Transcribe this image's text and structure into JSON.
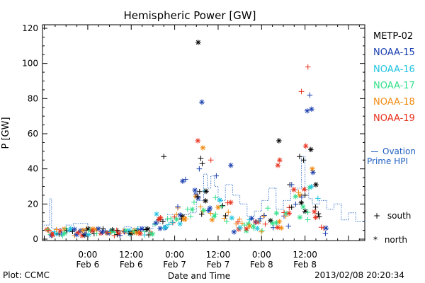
{
  "chart_data": {
    "type": "scatter",
    "title": "Hemispheric Power [GW]",
    "ylabel": "P [GW]",
    "xlabel": "Date and Time",
    "ylim": [
      0,
      123
    ],
    "xlim_hours": [
      -12.5,
      76.5
    ],
    "y_ticks": [
      0,
      20,
      40,
      60,
      80,
      100,
      120
    ],
    "x_ticks": [
      {
        "h": 0,
        "time": "0:00",
        "date": "Feb 6"
      },
      {
        "h": 12,
        "time": "12:00",
        "date": "Feb 6"
      },
      {
        "h": 24,
        "time": "0:00",
        "date": "Feb 7"
      },
      {
        "h": 36,
        "time": "12:00",
        "date": "Feb 7"
      },
      {
        "h": 48,
        "time": "0:00",
        "date": "Feb 8"
      },
      {
        "h": 60,
        "time": "12:00",
        "date": "Feb 8"
      }
    ],
    "series": [
      {
        "name": "METP-02",
        "color": "#000000"
      },
      {
        "name": "NOAA-15",
        "color": "#1a3fb0"
      },
      {
        "name": "NOAA-16",
        "color": "#22c4e0"
      },
      {
        "name": "NOAA-17",
        "color": "#33e08a"
      },
      {
        "name": "NOAA-18",
        "color": "#f28a10"
      },
      {
        "name": "NOAA-19",
        "color": "#e8301c"
      }
    ],
    "ovation_label": "Ovation Prime HPI",
    "ovation_color": "#1f5fbf",
    "ovation_step": [
      [
        -12.5,
        8
      ],
      [
        -10.5,
        23
      ],
      [
        -10,
        6
      ],
      [
        -6,
        8
      ],
      [
        -4,
        9
      ],
      [
        0,
        5
      ],
      [
        2,
        6
      ],
      [
        4,
        4
      ],
      [
        8,
        5
      ],
      [
        10,
        7
      ],
      [
        12,
        6
      ],
      [
        14,
        7
      ],
      [
        16,
        6
      ],
      [
        18,
        9
      ],
      [
        20,
        11
      ],
      [
        22,
        14
      ],
      [
        24,
        12
      ],
      [
        26,
        14
      ],
      [
        28,
        15
      ],
      [
        30,
        22
      ],
      [
        32,
        37
      ],
      [
        33,
        29
      ],
      [
        34,
        36
      ],
      [
        35,
        30
      ],
      [
        36,
        22
      ],
      [
        38,
        31
      ],
      [
        40,
        25
      ],
      [
        42,
        20
      ],
      [
        44,
        13
      ],
      [
        46,
        16
      ],
      [
        48,
        22
      ],
      [
        50,
        29
      ],
      [
        52,
        17
      ],
      [
        54,
        22
      ],
      [
        56,
        28
      ],
      [
        58,
        29
      ],
      [
        59,
        47
      ],
      [
        60,
        28
      ],
      [
        61,
        23
      ],
      [
        62,
        20
      ],
      [
        64,
        22
      ],
      [
        66,
        17
      ],
      [
        68,
        20
      ],
      [
        70,
        11
      ],
      [
        72,
        15
      ],
      [
        74,
        10
      ],
      [
        76.5,
        10
      ]
    ],
    "highlights": [
      {
        "h": 30.5,
        "p": 112,
        "series": "METP-02",
        "sym": "north"
      },
      {
        "h": 31.5,
        "p": 78,
        "series": "NOAA-15",
        "sym": "north"
      },
      {
        "h": 30.4,
        "p": 56,
        "series": "NOAA-19",
        "sym": "north"
      },
      {
        "h": 31.8,
        "p": 52,
        "series": "NOAA-18",
        "sym": "north"
      },
      {
        "h": 31.2,
        "p": 46,
        "series": "METP-02",
        "sym": "south"
      },
      {
        "h": 31.6,
        "p": 43,
        "series": "METP-02",
        "sym": "south"
      },
      {
        "h": 30.8,
        "p": 40,
        "series": "NOAA-15",
        "sym": "south"
      },
      {
        "h": 34.0,
        "p": 45,
        "series": "NOAA-19",
        "sym": "south"
      },
      {
        "h": 35.5,
        "p": 36,
        "series": "NOAA-15",
        "sym": "south"
      },
      {
        "h": 39.5,
        "p": 42,
        "series": "NOAA-15",
        "sym": "north"
      },
      {
        "h": 21.0,
        "p": 47,
        "series": "METP-02",
        "sym": "south"
      },
      {
        "h": 26.2,
        "p": 33,
        "series": "NOAA-15",
        "sym": "north"
      },
      {
        "h": 27.0,
        "p": 34,
        "series": "NOAA-15",
        "sym": "south"
      },
      {
        "h": 52.8,
        "p": 56,
        "series": "METP-02",
        "sym": "north"
      },
      {
        "h": 52.5,
        "p": 42,
        "series": "NOAA-19",
        "sym": "north"
      },
      {
        "h": 53.0,
        "p": 45,
        "series": "NOAA-19",
        "sym": "north"
      },
      {
        "h": 59.0,
        "p": 84,
        "series": "NOAA-19",
        "sym": "south"
      },
      {
        "h": 60.8,
        "p": 98,
        "series": "NOAA-19",
        "sym": "south"
      },
      {
        "h": 60.6,
        "p": 73,
        "series": "NOAA-15",
        "sym": "north"
      },
      {
        "h": 61.3,
        "p": 82,
        "series": "NOAA-15",
        "sym": "south"
      },
      {
        "h": 61.8,
        "p": 74,
        "series": "NOAA-15",
        "sym": "north"
      },
      {
        "h": 60.2,
        "p": 53,
        "series": "NOAA-19",
        "sym": "north"
      },
      {
        "h": 61.6,
        "p": 51,
        "series": "METP-02",
        "sym": "north"
      },
      {
        "h": 58.5,
        "p": 47,
        "series": "METP-02",
        "sym": "south"
      },
      {
        "h": 59.6,
        "p": 45,
        "series": "METP-02",
        "sym": "south"
      },
      {
        "h": 62.2,
        "p": 38,
        "series": "NOAA-15",
        "sym": "north"
      },
      {
        "h": 62.0,
        "p": 40,
        "series": "NOAA-18",
        "sym": "north"
      },
      {
        "h": 60.0,
        "p": 25,
        "series": "METP-02",
        "sym": "south"
      },
      {
        "h": 63.0,
        "p": 31,
        "series": "METP-02",
        "sym": "north"
      },
      {
        "h": 55.8,
        "p": 31,
        "series": "METP-02",
        "sym": "south"
      },
      {
        "h": 56.3,
        "p": 31,
        "series": "NOAA-15",
        "sym": "south"
      }
    ]
  },
  "legend_symbols": [
    {
      "sym": "+",
      "label": "south"
    },
    {
      "sym": "*",
      "label": "north"
    }
  ],
  "footer": {
    "plot_label": "Plot: CCMC",
    "timestamp": "2013/02/08  20:20:34"
  }
}
